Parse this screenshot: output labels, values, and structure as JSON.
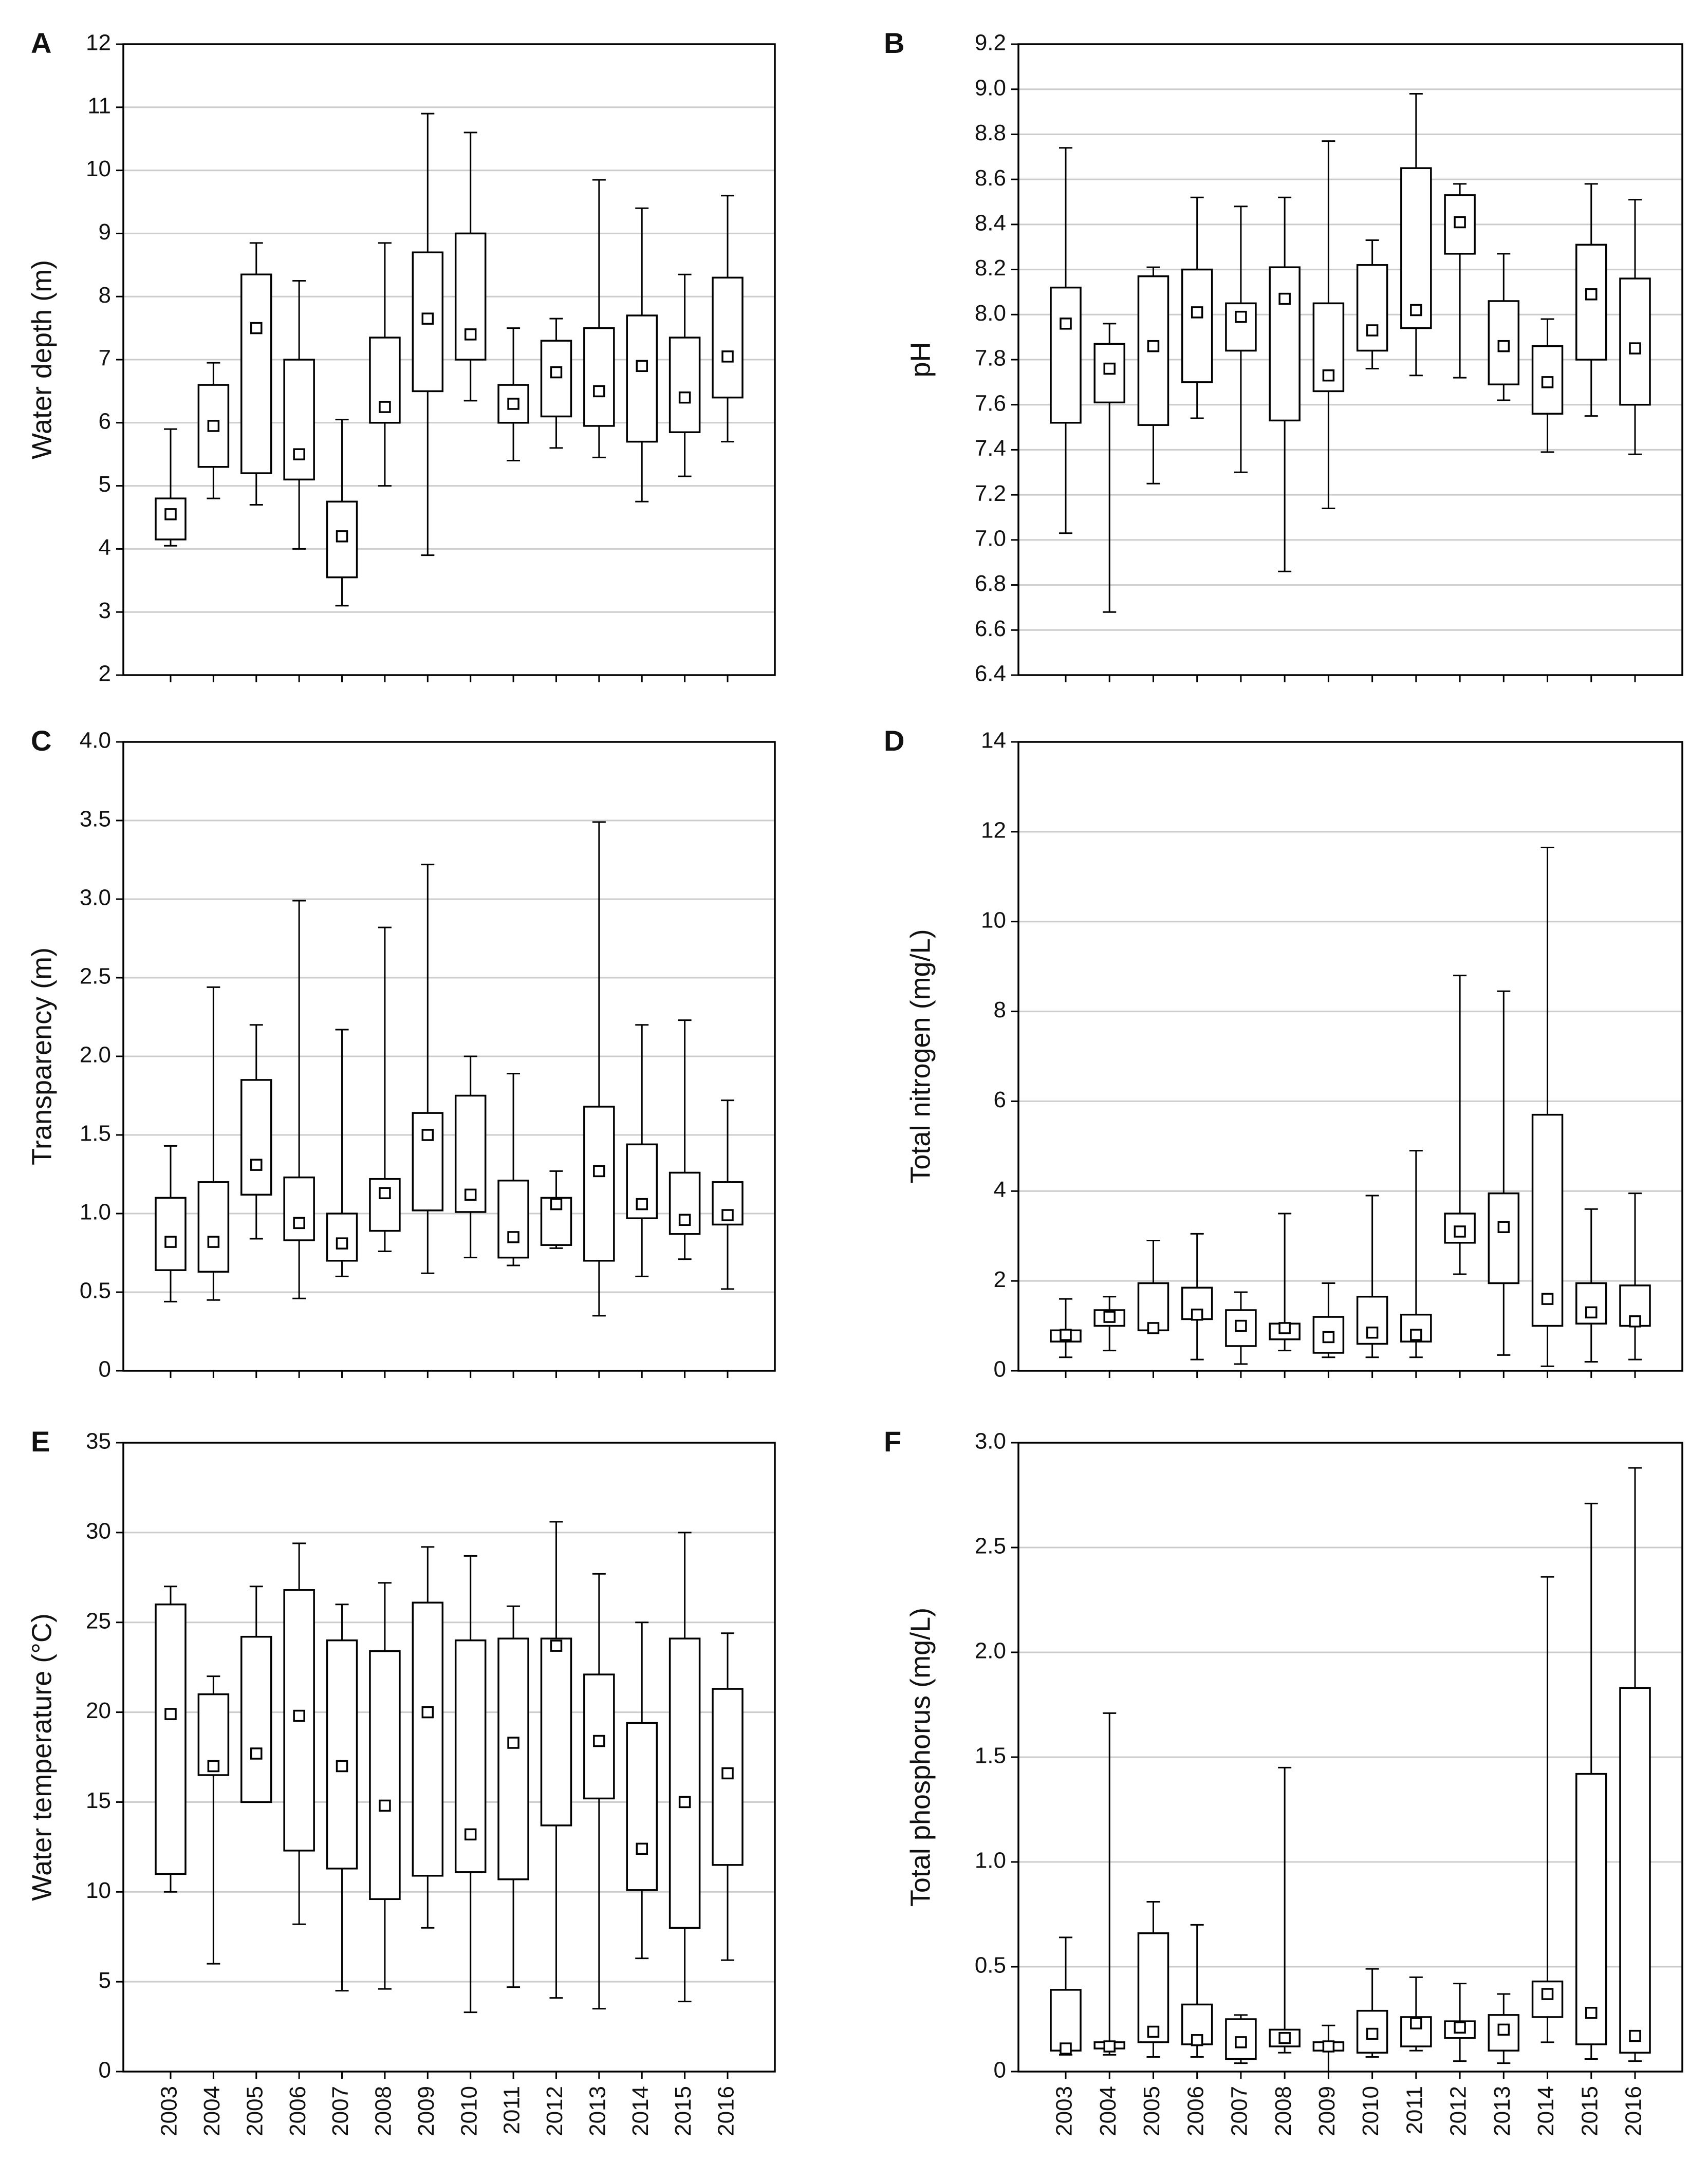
{
  "chart_data": [
    {
      "panel": "A",
      "type": "box",
      "ylabel": "Water depth (m)",
      "ylim": [
        2,
        12
      ],
      "yticks": [
        "2",
        "3",
        "4",
        "5",
        "6",
        "7",
        "8",
        "9",
        "10",
        "11",
        "12"
      ],
      "show_xticks": false,
      "categories": [
        "2003",
        "2004",
        "2005",
        "2006",
        "2007",
        "2008",
        "2009",
        "2010",
        "2011",
        "2012",
        "2013",
        "2014",
        "2015",
        "2016"
      ],
      "boxes": [
        {
          "min": 4.05,
          "q1": 4.15,
          "median": 4.55,
          "q3": 4.8,
          "max": 5.9
        },
        {
          "min": 4.8,
          "q1": 5.3,
          "median": 5.95,
          "q3": 6.6,
          "max": 6.95
        },
        {
          "min": 4.7,
          "q1": 5.2,
          "median": 7.5,
          "q3": 8.35,
          "max": 8.85
        },
        {
          "min": 4.0,
          "q1": 5.1,
          "median": 5.5,
          "q3": 7.0,
          "max": 8.25
        },
        {
          "min": 3.1,
          "q1": 3.55,
          "median": 4.2,
          "q3": 4.75,
          "max": 6.05
        },
        {
          "min": 5.0,
          "q1": 6.0,
          "median": 6.25,
          "q3": 7.35,
          "max": 8.85
        },
        {
          "min": 3.9,
          "q1": 6.5,
          "median": 7.65,
          "q3": 8.7,
          "max": 10.9
        },
        {
          "min": 6.35,
          "q1": 7.0,
          "median": 7.4,
          "q3": 9.0,
          "max": 10.6
        },
        {
          "min": 5.4,
          "q1": 6.0,
          "median": 6.3,
          "q3": 6.6,
          "max": 7.5
        },
        {
          "min": 5.6,
          "q1": 6.1,
          "median": 6.8,
          "q3": 7.3,
          "max": 7.65
        },
        {
          "min": 5.45,
          "q1": 5.95,
          "median": 6.5,
          "q3": 7.5,
          "max": 9.85
        },
        {
          "min": 4.75,
          "q1": 5.7,
          "median": 6.9,
          "q3": 7.7,
          "max": 9.4
        },
        {
          "min": 5.15,
          "q1": 5.85,
          "median": 6.4,
          "q3": 7.35,
          "max": 8.35
        },
        {
          "min": 5.7,
          "q1": 6.4,
          "median": 7.05,
          "q3": 8.3,
          "max": 9.6
        }
      ]
    },
    {
      "panel": "B",
      "type": "box",
      "ylabel": "pH",
      "ylim": [
        6.4,
        9.2
      ],
      "yticks": [
        "6.4",
        "6.6",
        "6.8",
        "7.0",
        "7.2",
        "7.4",
        "7.6",
        "7.8",
        "8.0",
        "8.2",
        "8.4",
        "8.6",
        "8.8",
        "9.0",
        "9.2"
      ],
      "show_xticks": false,
      "categories": [
        "2003",
        "2004",
        "2005",
        "2006",
        "2007",
        "2008",
        "2009",
        "2010",
        "2011",
        "2012",
        "2013",
        "2014",
        "2015",
        "2016"
      ],
      "boxes": [
        {
          "min": 7.03,
          "q1": 7.52,
          "median": 7.96,
          "q3": 8.12,
          "max": 8.74
        },
        {
          "min": 6.68,
          "q1": 7.61,
          "median": 7.76,
          "q3": 7.87,
          "max": 7.96
        },
        {
          "min": 7.25,
          "q1": 7.51,
          "median": 7.86,
          "q3": 8.17,
          "max": 8.21
        },
        {
          "min": 7.54,
          "q1": 7.7,
          "median": 8.01,
          "q3": 8.2,
          "max": 8.52
        },
        {
          "min": 7.3,
          "q1": 7.84,
          "median": 7.99,
          "q3": 8.05,
          "max": 8.48
        },
        {
          "min": 6.86,
          "q1": 7.53,
          "median": 8.07,
          "q3": 8.21,
          "max": 8.52
        },
        {
          "min": 7.14,
          "q1": 7.66,
          "median": 7.73,
          "q3": 8.05,
          "max": 8.77
        },
        {
          "min": 7.76,
          "q1": 7.84,
          "median": 7.93,
          "q3": 8.22,
          "max": 8.33
        },
        {
          "min": 7.73,
          "q1": 7.94,
          "median": 8.02,
          "q3": 8.65,
          "max": 8.98
        },
        {
          "min": 7.72,
          "q1": 8.27,
          "median": 8.41,
          "q3": 8.53,
          "max": 8.58
        },
        {
          "min": 7.62,
          "q1": 7.69,
          "median": 7.86,
          "q3": 8.06,
          "max": 8.27
        },
        {
          "min": 7.39,
          "q1": 7.56,
          "median": 7.7,
          "q3": 7.86,
          "max": 7.98
        },
        {
          "min": 7.55,
          "q1": 7.8,
          "median": 8.09,
          "q3": 8.31,
          "max": 8.58
        },
        {
          "min": 7.38,
          "q1": 7.6,
          "median": 7.85,
          "q3": 8.16,
          "max": 8.51
        }
      ]
    },
    {
      "panel": "C",
      "type": "box",
      "ylabel": "Transparency (m)",
      "ylim": [
        0,
        4.0
      ],
      "yticks": [
        "0",
        "0.5",
        "1.0",
        "1.5",
        "2.0",
        "2.5",
        "3.0",
        "3.5",
        "4.0"
      ],
      "show_xticks": false,
      "categories": [
        "2003",
        "2004",
        "2005",
        "2006",
        "2007",
        "2008",
        "2009",
        "2010",
        "2011",
        "2012",
        "2013",
        "2014",
        "2015",
        "2016"
      ],
      "boxes": [
        {
          "min": 0.44,
          "q1": 0.64,
          "median": 0.82,
          "q3": 1.1,
          "max": 1.43
        },
        {
          "min": 0.45,
          "q1": 0.63,
          "median": 0.82,
          "q3": 1.2,
          "max": 2.44
        },
        {
          "min": 0.84,
          "q1": 1.12,
          "median": 1.31,
          "q3": 1.85,
          "max": 2.2
        },
        {
          "min": 0.46,
          "q1": 0.83,
          "median": 0.94,
          "q3": 1.23,
          "max": 2.99
        },
        {
          "min": 0.6,
          "q1": 0.7,
          "median": 0.81,
          "q3": 1.0,
          "max": 2.17
        },
        {
          "min": 0.76,
          "q1": 0.89,
          "median": 1.13,
          "q3": 1.22,
          "max": 2.82
        },
        {
          "min": 0.62,
          "q1": 1.02,
          "median": 1.5,
          "q3": 1.64,
          "max": 3.22
        },
        {
          "min": 0.72,
          "q1": 1.01,
          "median": 1.12,
          "q3": 1.75,
          "max": 2.0
        },
        {
          "min": 0.67,
          "q1": 0.72,
          "median": 0.85,
          "q3": 1.21,
          "max": 1.89
        },
        {
          "min": 0.78,
          "q1": 0.8,
          "median": 1.06,
          "q3": 1.1,
          "max": 1.27
        },
        {
          "min": 0.35,
          "q1": 0.7,
          "median": 1.27,
          "q3": 1.68,
          "max": 3.49
        },
        {
          "min": 0.6,
          "q1": 0.97,
          "median": 1.06,
          "q3": 1.44,
          "max": 2.2
        },
        {
          "min": 0.71,
          "q1": 0.87,
          "median": 0.96,
          "q3": 1.26,
          "max": 2.23
        },
        {
          "min": 0.52,
          "q1": 0.93,
          "median": 0.99,
          "q3": 1.2,
          "max": 1.72
        }
      ]
    },
    {
      "panel": "D",
      "type": "box",
      "ylabel": "Total nitrogen (mg/L)",
      "ylim": [
        0,
        14
      ],
      "yticks": [
        "0",
        "2",
        "4",
        "6",
        "8",
        "10",
        "12",
        "14"
      ],
      "show_xticks": false,
      "categories": [
        "2003",
        "2004",
        "2005",
        "2006",
        "2007",
        "2008",
        "2009",
        "2010",
        "2011",
        "2012",
        "2013",
        "2014",
        "2015",
        "2016"
      ],
      "boxes": [
        {
          "min": 0.3,
          "q1": 0.65,
          "median": 0.8,
          "q3": 0.9,
          "max": 1.6
        },
        {
          "min": 0.45,
          "q1": 1.0,
          "median": 1.2,
          "q3": 1.35,
          "max": 1.65
        },
        {
          "min": 0.9,
          "q1": 0.9,
          "median": 0.95,
          "q3": 1.95,
          "max": 2.9
        },
        {
          "min": 0.25,
          "q1": 1.15,
          "median": 1.25,
          "q3": 1.85,
          "max": 3.05
        },
        {
          "min": 0.15,
          "q1": 0.55,
          "median": 1.0,
          "q3": 1.35,
          "max": 1.75
        },
        {
          "min": 0.45,
          "q1": 0.7,
          "median": 0.95,
          "q3": 1.05,
          "max": 3.5
        },
        {
          "min": 0.3,
          "q1": 0.4,
          "median": 0.75,
          "q3": 1.2,
          "max": 1.95
        },
        {
          "min": 0.3,
          "q1": 0.6,
          "median": 0.85,
          "q3": 1.65,
          "max": 3.9
        },
        {
          "min": 0.3,
          "q1": 0.65,
          "median": 0.8,
          "q3": 1.25,
          "max": 4.9
        },
        {
          "min": 2.15,
          "q1": 2.85,
          "median": 3.1,
          "q3": 3.5,
          "max": 8.8
        },
        {
          "min": 0.35,
          "q1": 1.95,
          "median": 3.2,
          "q3": 3.95,
          "max": 8.45
        },
        {
          "min": 0.1,
          "q1": 1.0,
          "median": 1.6,
          "q3": 5.7,
          "max": 11.65
        },
        {
          "min": 0.2,
          "q1": 1.05,
          "median": 1.3,
          "q3": 1.95,
          "max": 3.6
        },
        {
          "min": 0.25,
          "q1": 1.0,
          "median": 1.1,
          "q3": 1.9,
          "max": 3.95
        }
      ]
    },
    {
      "panel": "E",
      "type": "box",
      "ylabel": "Water temperature (°C)",
      "ylim": [
        0,
        35
      ],
      "yticks": [
        "0",
        "5",
        "10",
        "15",
        "20",
        "25",
        "30",
        "35"
      ],
      "show_xticks": true,
      "categories": [
        "2003",
        "2004",
        "2005",
        "2006",
        "2007",
        "2008",
        "2009",
        "2010",
        "2011",
        "2012",
        "2013",
        "2014",
        "2015",
        "2016"
      ],
      "boxes": [
        {
          "min": 10.0,
          "q1": 11.0,
          "median": 19.9,
          "q3": 26.0,
          "max": 27.0
        },
        {
          "min": 6.0,
          "q1": 16.5,
          "median": 17.0,
          "q3": 21.0,
          "max": 22.0
        },
        {
          "min": 15.0,
          "q1": 15.0,
          "median": 17.7,
          "q3": 24.2,
          "max": 27.0
        },
        {
          "min": 8.2,
          "q1": 12.3,
          "median": 19.8,
          "q3": 26.8,
          "max": 29.4
        },
        {
          "min": 4.5,
          "q1": 11.3,
          "median": 17.0,
          "q3": 24.0,
          "max": 26.0
        },
        {
          "min": 4.6,
          "q1": 9.6,
          "median": 14.8,
          "q3": 23.4,
          "max": 27.2
        },
        {
          "min": 8.0,
          "q1": 10.9,
          "median": 20.0,
          "q3": 26.1,
          "max": 29.2
        },
        {
          "min": 3.3,
          "q1": 11.1,
          "median": 13.2,
          "q3": 24.0,
          "max": 28.7
        },
        {
          "min": 4.7,
          "q1": 10.7,
          "median": 18.3,
          "q3": 24.1,
          "max": 25.9
        },
        {
          "min": 4.1,
          "q1": 13.7,
          "median": 23.7,
          "q3": 24.1,
          "max": 30.6
        },
        {
          "min": 3.5,
          "q1": 15.2,
          "median": 18.4,
          "q3": 22.1,
          "max": 27.7
        },
        {
          "min": 6.3,
          "q1": 10.1,
          "median": 12.4,
          "q3": 19.4,
          "max": 25.0
        },
        {
          "min": 3.9,
          "q1": 8.0,
          "median": 15.0,
          "q3": 24.1,
          "max": 30.0
        },
        {
          "min": 6.2,
          "q1": 11.5,
          "median": 16.6,
          "q3": 21.3,
          "max": 24.4
        }
      ]
    },
    {
      "panel": "F",
      "type": "box",
      "ylabel": "Total phosphorus (mg/L)",
      "ylim": [
        0,
        3.0
      ],
      "yticks": [
        "0",
        "0.5",
        "1.0",
        "1.5",
        "2.0",
        "2.5",
        "3.0"
      ],
      "show_xticks": true,
      "categories": [
        "2003",
        "2004",
        "2005",
        "2006",
        "2007",
        "2008",
        "2009",
        "2010",
        "2011",
        "2012",
        "2013",
        "2014",
        "2015",
        "2016"
      ],
      "boxes": [
        {
          "min": 0.08,
          "q1": 0.1,
          "median": 0.11,
          "q3": 0.39,
          "max": 0.64
        },
        {
          "min": 0.08,
          "q1": 0.11,
          "median": 0.12,
          "q3": 0.14,
          "max": 1.71
        },
        {
          "min": 0.07,
          "q1": 0.14,
          "median": 0.19,
          "q3": 0.66,
          "max": 0.81
        },
        {
          "min": 0.07,
          "q1": 0.13,
          "median": 0.15,
          "q3": 0.32,
          "max": 0.7
        },
        {
          "min": 0.04,
          "q1": 0.06,
          "median": 0.14,
          "q3": 0.25,
          "max": 0.27
        },
        {
          "min": 0.09,
          "q1": 0.12,
          "median": 0.16,
          "q3": 0.2,
          "max": 1.45
        },
        {
          "min": 0.0,
          "q1": 0.1,
          "median": 0.12,
          "q3": 0.14,
          "max": 0.22
        },
        {
          "min": 0.07,
          "q1": 0.09,
          "median": 0.18,
          "q3": 0.29,
          "max": 0.49
        },
        {
          "min": 0.1,
          "q1": 0.12,
          "median": 0.23,
          "q3": 0.26,
          "max": 0.45
        },
        {
          "min": 0.05,
          "q1": 0.16,
          "median": 0.21,
          "q3": 0.24,
          "max": 0.42
        },
        {
          "min": 0.04,
          "q1": 0.1,
          "median": 0.2,
          "q3": 0.27,
          "max": 0.37
        },
        {
          "min": 0.14,
          "q1": 0.26,
          "median": 0.37,
          "q3": 0.43,
          "max": 2.36
        },
        {
          "min": 0.06,
          "q1": 0.13,
          "median": 0.28,
          "q3": 1.42,
          "max": 2.71
        },
        {
          "min": 0.05,
          "q1": 0.09,
          "median": 0.17,
          "q3": 1.83,
          "max": 2.88
        }
      ]
    }
  ]
}
